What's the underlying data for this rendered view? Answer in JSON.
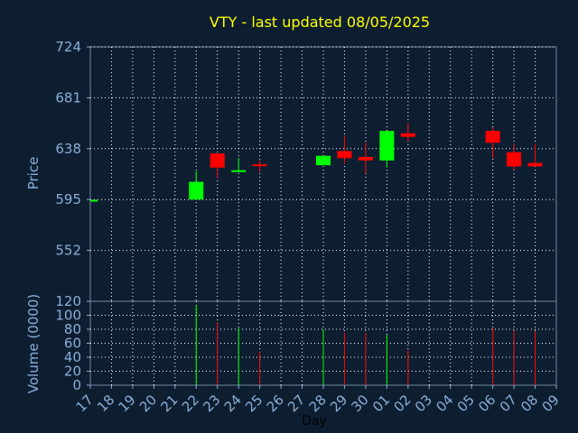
{
  "chart_data": {
    "type": "candlestick",
    "title": "VTY - last updated 08/05/2025",
    "x_label": "Day",
    "x_categories": [
      "17",
      "18",
      "19",
      "20",
      "21",
      "22",
      "23",
      "24",
      "25",
      "26",
      "27",
      "28",
      "29",
      "30",
      "01",
      "02",
      "03",
      "04",
      "05",
      "06",
      "07",
      "08",
      "09"
    ],
    "price_panel": {
      "y_label": "Price",
      "y_ticks": [
        "724",
        "681",
        "638",
        "595",
        "552"
      ],
      "ylim": [
        509,
        724
      ],
      "grid": true,
      "candles": [
        {
          "day": "17",
          "open": 594,
          "close": 594,
          "high": 594,
          "low": 594
        },
        {
          "day": "22",
          "open": 595,
          "close": 610,
          "high": 619,
          "low": 595
        },
        {
          "day": "23",
          "open": 634,
          "close": 622,
          "high": 634,
          "low": 613
        },
        {
          "day": "24",
          "open": 618,
          "close": 619,
          "high": 630,
          "low": 618
        },
        {
          "day": "25",
          "open": 624,
          "close": 623,
          "high": 628,
          "low": 618
        },
        {
          "day": "28",
          "open": 624,
          "close": 632,
          "high": 632,
          "low": 624
        },
        {
          "day": "29",
          "open": 636,
          "close": 630,
          "high": 649,
          "low": 625
        },
        {
          "day": "30",
          "open": 631,
          "close": 628,
          "high": 643,
          "low": 617
        },
        {
          "day": "01",
          "open": 628,
          "close": 653,
          "high": 653,
          "low": 622
        },
        {
          "day": "02",
          "open": 651,
          "close": 648,
          "high": 660,
          "low": 644
        },
        {
          "day": "06",
          "open": 653,
          "close": 643,
          "high": 656,
          "low": 630
        },
        {
          "day": "07",
          "open": 635,
          "close": 623,
          "high": 642,
          "low": 620
        },
        {
          "day": "08",
          "open": 626,
          "close": 623,
          "high": 642,
          "low": 623
        }
      ]
    },
    "volume_panel": {
      "y_label": "Volume (0000)",
      "y_ticks": [
        "120",
        "100",
        "80",
        "60",
        "40",
        "20",
        "0"
      ],
      "ylim": [
        0,
        120
      ],
      "grid": true,
      "bars": [
        {
          "day": "22",
          "value": 115,
          "direction": "up"
        },
        {
          "day": "23",
          "value": 90,
          "direction": "down"
        },
        {
          "day": "24",
          "value": 82,
          "direction": "up"
        },
        {
          "day": "25",
          "value": 48,
          "direction": "down"
        },
        {
          "day": "28",
          "value": 80,
          "direction": "up"
        },
        {
          "day": "29",
          "value": 75,
          "direction": "down"
        },
        {
          "day": "30",
          "value": 75,
          "direction": "down"
        },
        {
          "day": "01",
          "value": 72,
          "direction": "up"
        },
        {
          "day": "02",
          "value": 50,
          "direction": "down"
        },
        {
          "day": "06",
          "value": 82,
          "direction": "down"
        },
        {
          "day": "07",
          "value": 78,
          "direction": "down"
        },
        {
          "day": "08",
          "value": 77,
          "direction": "down"
        }
      ]
    },
    "colors": {
      "background": "#0e1e31",
      "up": "#00ff00",
      "down": "#ff0000",
      "text": "#8aaed6",
      "title": "#ffff00",
      "grid": "#ffffff"
    }
  }
}
